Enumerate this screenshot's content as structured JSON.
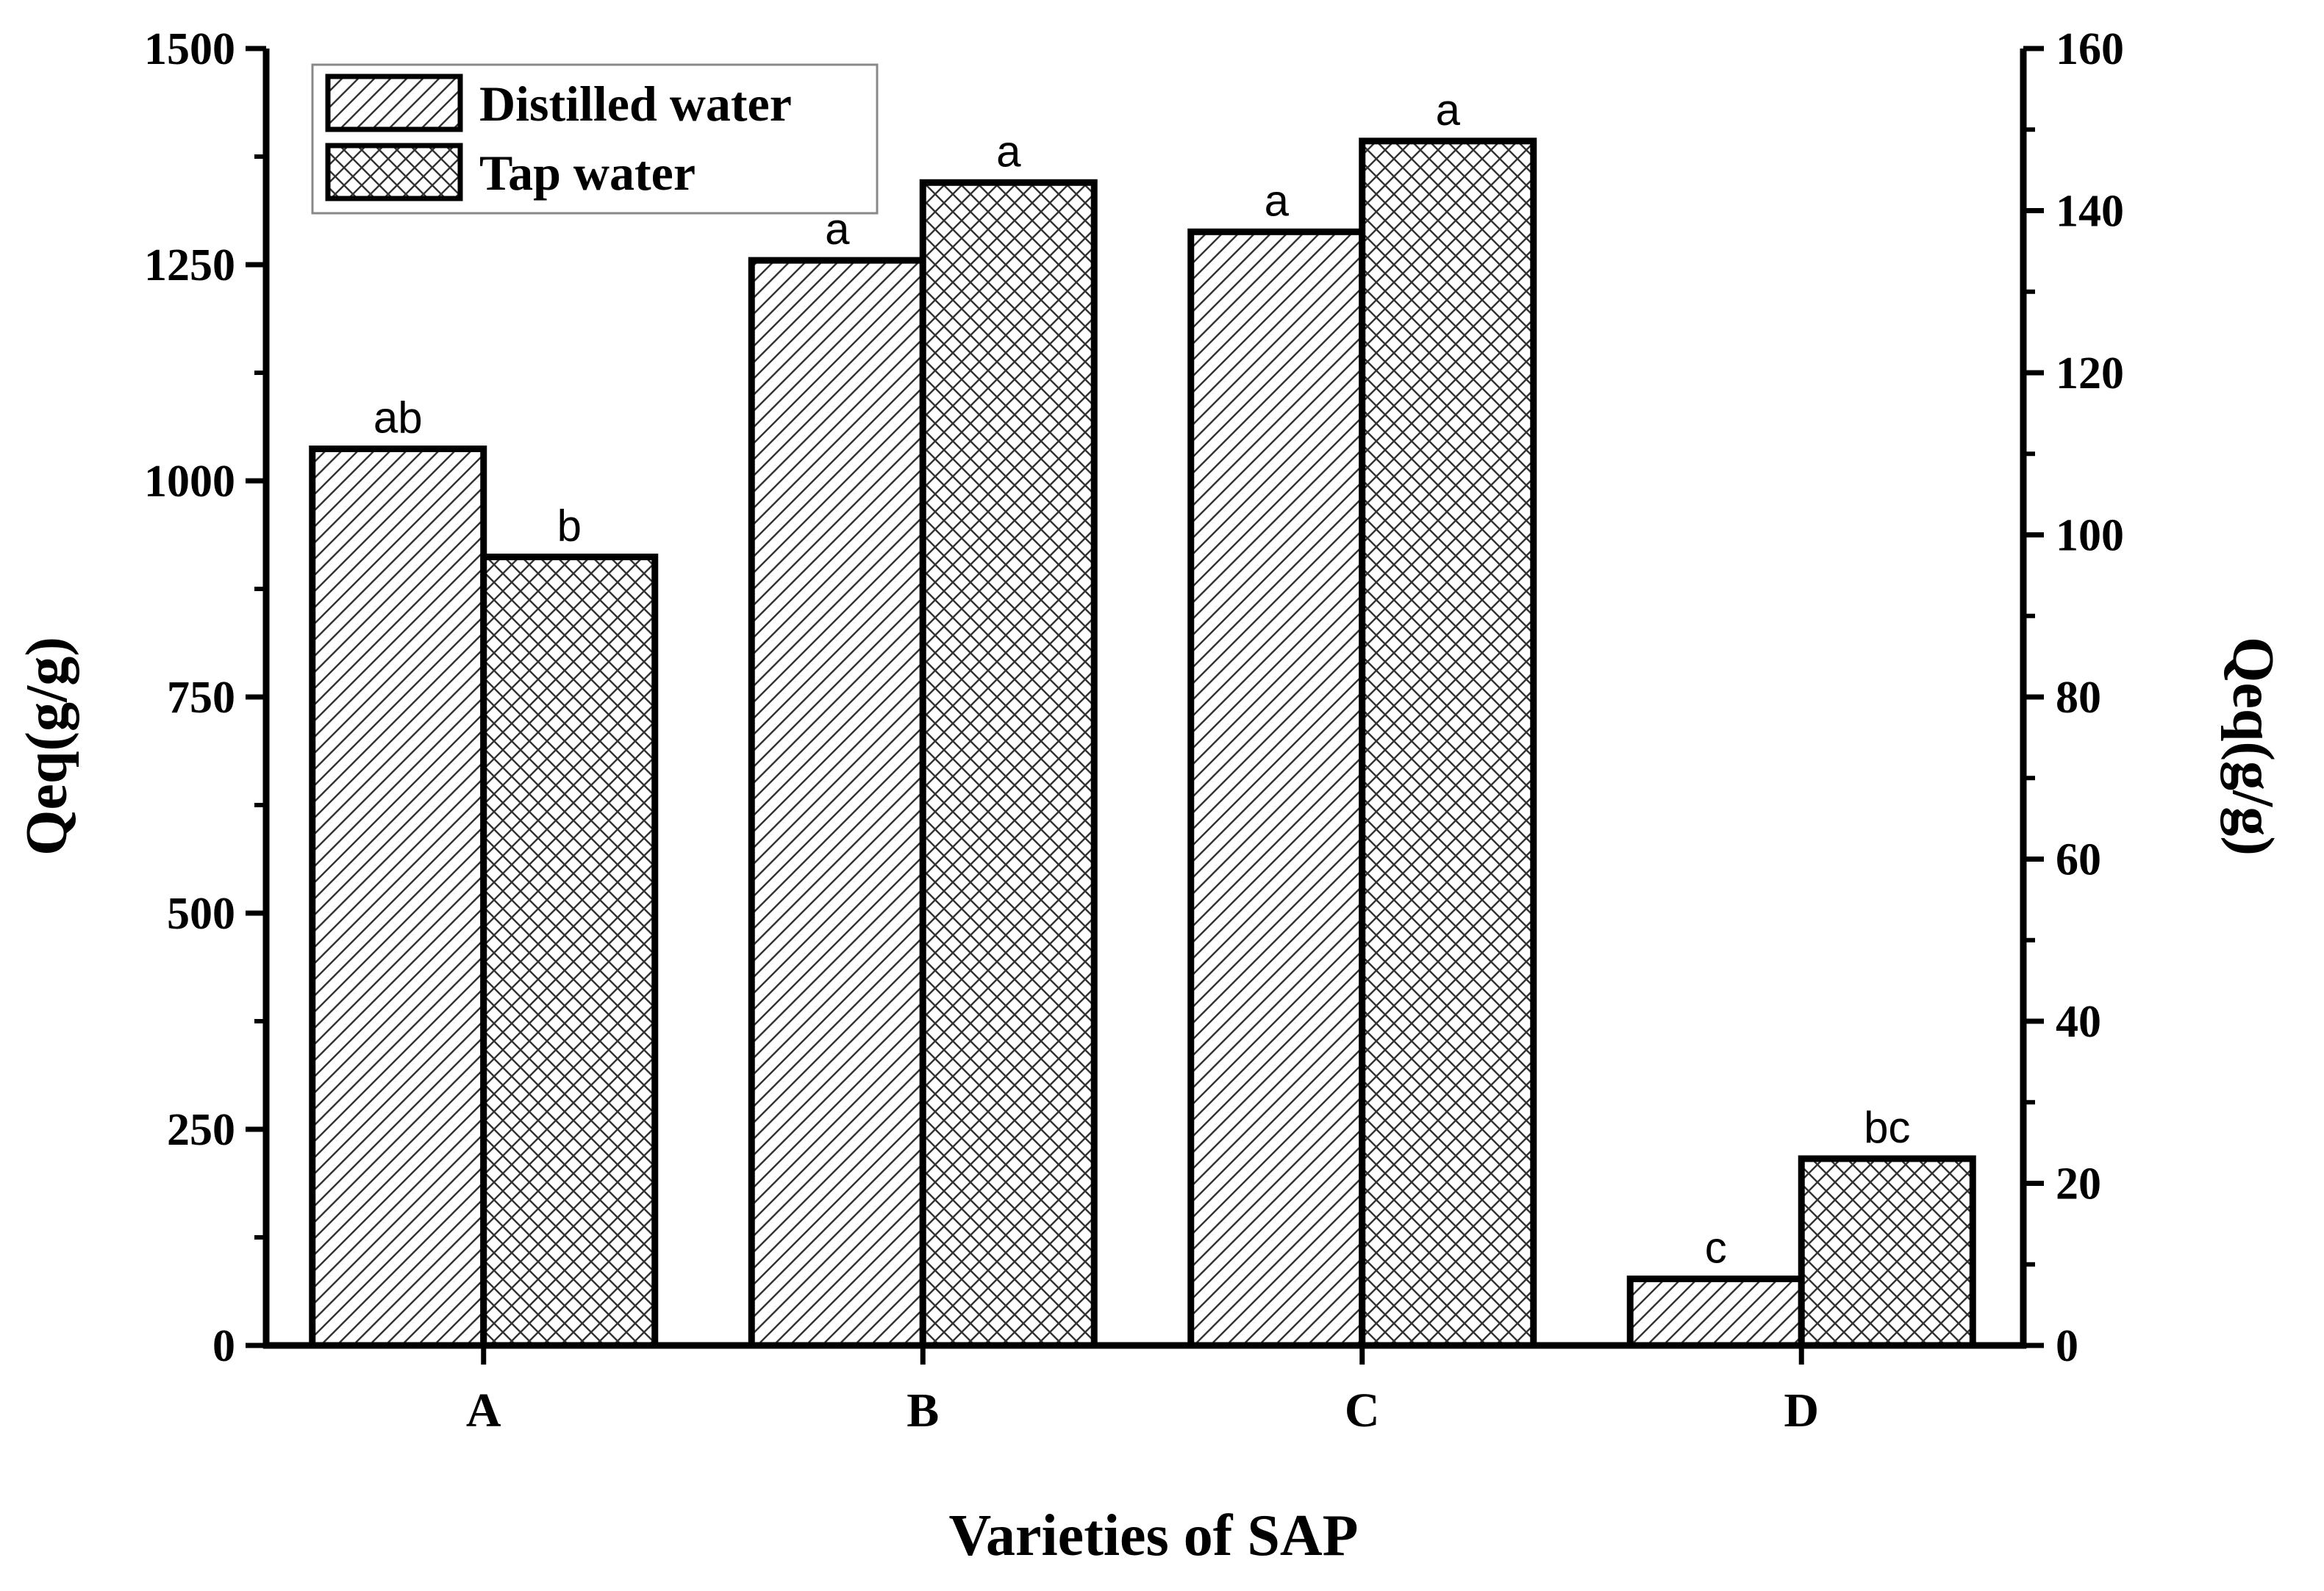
{
  "chart_data": {
    "type": "bar",
    "title": "",
    "xlabel": "Varieties of SAP",
    "ylabel": "Qeq(g/g)",
    "ylabel_right": "Qeq(g/g)",
    "categories": [
      "A",
      "B",
      "C",
      "D"
    ],
    "ylim": [
      0,
      1500
    ],
    "yticks": [
      "0",
      "250",
      "500",
      "750",
      "1000",
      "1250",
      "1500"
    ],
    "ylim_right": [
      0,
      160
    ],
    "yticks_right": [
      "0",
      "20",
      "40",
      "60",
      "80",
      "100",
      "120",
      "140",
      "160"
    ],
    "legend_position": "top-left",
    "series": [
      {
        "name": "Distilled water",
        "axis": "left",
        "pattern": "diagonal-hatch",
        "values": [
          1037,
          1255,
          1288,
          77
        ],
        "labels": [
          "ab",
          "a",
          "a",
          "c"
        ]
      },
      {
        "name": "Tap water",
        "axis": "left",
        "pattern": "cross-hatch",
        "values": [
          912,
          1345,
          1393,
          216
        ],
        "labels": [
          "b",
          "a",
          "a",
          "bc"
        ]
      }
    ]
  }
}
